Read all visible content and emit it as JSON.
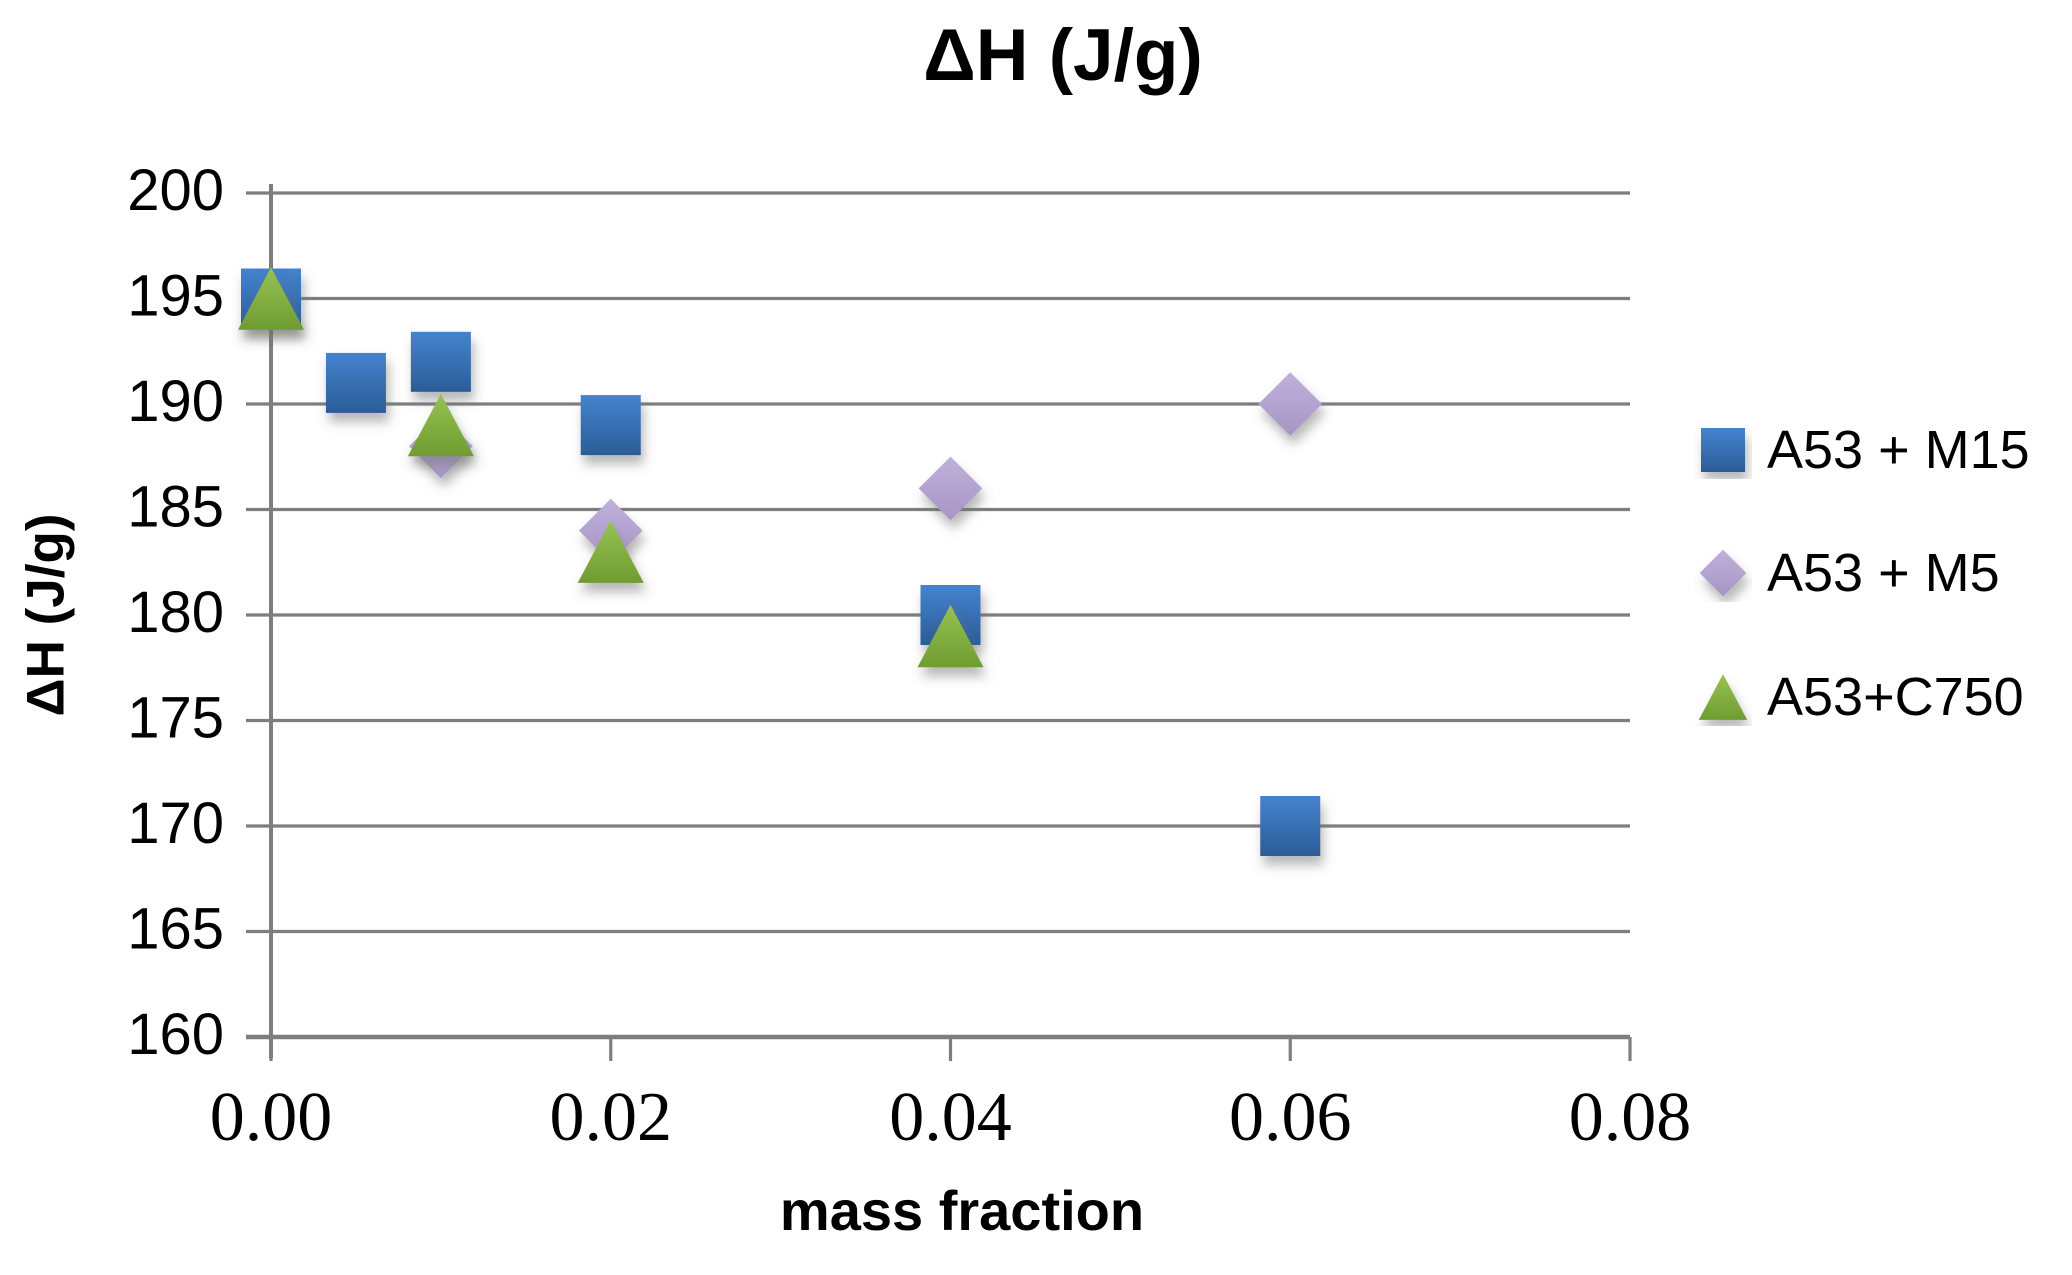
{
  "chart_data": {
    "type": "scatter",
    "title": "ΔH (J/g)",
    "xlabel": "mass fraction",
    "ylabel": "ΔH (J/g)",
    "xlim": [
      0,
      0.08
    ],
    "ylim": [
      160,
      200
    ],
    "grid": "horizontal",
    "legend_position": "right",
    "x_ticks": [
      {
        "value": 0.0,
        "label": "0.00"
      },
      {
        "value": 0.02,
        "label": "0.02"
      },
      {
        "value": 0.04,
        "label": "0.04"
      },
      {
        "value": 0.06,
        "label": "0.06"
      },
      {
        "value": 0.08,
        "label": "0.08"
      }
    ],
    "y_ticks": [
      {
        "value": 200,
        "label": "200"
      },
      {
        "value": 195,
        "label": "195"
      },
      {
        "value": 190,
        "label": "190"
      },
      {
        "value": 185,
        "label": "185"
      },
      {
        "value": 180,
        "label": "180"
      },
      {
        "value": 175,
        "label": "175"
      },
      {
        "value": 170,
        "label": "170"
      },
      {
        "value": 165,
        "label": "165"
      },
      {
        "value": 160,
        "label": "160"
      }
    ],
    "colors": {
      "gridline": "#7E7E7E",
      "axis": "#7E7E7E",
      "text": "#000000"
    },
    "series": [
      {
        "name": "A53 + M15",
        "marker": "square",
        "color": "#3A74BC",
        "gradient": [
          "#4583CE",
          "#2B5C97"
        ],
        "points": [
          {
            "x": 0.0,
            "y": 195
          },
          {
            "x": 0.005,
            "y": 191
          },
          {
            "x": 0.01,
            "y": 192
          },
          {
            "x": 0.02,
            "y": 189
          },
          {
            "x": 0.04,
            "y": 180
          },
          {
            "x": 0.06,
            "y": 170
          }
        ]
      },
      {
        "name": "A53 + M5",
        "marker": "diamond",
        "color": "#B3A4CE",
        "gradient": [
          "#BFB1DA",
          "#A795C5"
        ],
        "points": [
          {
            "x": 0.01,
            "y": 188
          },
          {
            "x": 0.02,
            "y": 184
          },
          {
            "x": 0.04,
            "y": 186
          },
          {
            "x": 0.06,
            "y": 190
          }
        ]
      },
      {
        "name": "A53+C750",
        "marker": "triangle",
        "color": "#8AB446",
        "gradient": [
          "#97C253",
          "#6F9C31"
        ],
        "points": [
          {
            "x": 0.0,
            "y": 195
          },
          {
            "x": 0.01,
            "y": 189
          },
          {
            "x": 0.02,
            "y": 183
          },
          {
            "x": 0.04,
            "y": 179
          }
        ]
      }
    ]
  }
}
